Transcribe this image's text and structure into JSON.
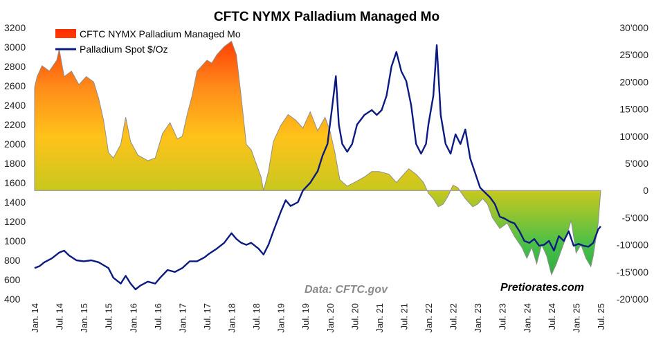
{
  "chart_data": {
    "type": "line",
    "title": "CFTC NYMX Palladium Managed Mo",
    "legend": [
      "CFTC NYMX Palladium Managed Mo",
      "Palladium Spot  $/Oz"
    ],
    "legend_position": "top-left",
    "left_axis": {
      "ticks": [
        "3200",
        "3000",
        "2800",
        "2600",
        "2400",
        "2200",
        "2000",
        "1800",
        "1600",
        "1400",
        "1200",
        "1000",
        "800",
        "600",
        "400"
      ],
      "range": [
        400,
        3200
      ]
    },
    "right_axis": {
      "ticks": [
        "30'000",
        "25'000",
        "20'000",
        "15'000",
        "10'000",
        "5'000",
        "0",
        "-5'000",
        "-10'000",
        "-15'000",
        "-20'000"
      ],
      "range": [
        -20000,
        30000
      ]
    },
    "x_ticks": [
      "Jan. 14",
      "Jul. 14",
      "Jan. 15",
      "Jul. 15",
      "Jan. 16",
      "Jul. 16",
      "Jan. 17",
      "Jul. 17",
      "Jan. 18",
      "Jul. 18",
      "Jan. 19",
      "Jul. 19",
      "Jan. 20",
      "Jul. 20",
      "Jan. 21",
      "Jul. 21",
      "Jan. 22",
      "Jul. 22",
      "Jan. 23",
      "Jul. 23",
      "Jan. 24",
      "Jul. 24",
      "Jan. 25",
      "Jul. 25"
    ],
    "x_range": [
      2014.0,
      2025.5
    ],
    "grid": false,
    "annotations": [
      "Data: CFTC.gov",
      "Pretiorates.com"
    ],
    "series": [
      {
        "name": "CFTC NYMX Palladium Managed Mo",
        "axis": "right",
        "style": "area",
        "points": [
          [
            2014.0,
            19000
          ],
          [
            2014.05,
            21000
          ],
          [
            2014.15,
            23000
          ],
          [
            2014.3,
            22000
          ],
          [
            2014.45,
            24000
          ],
          [
            2014.5,
            26000
          ],
          [
            2014.6,
            21000
          ],
          [
            2014.75,
            22000
          ],
          [
            2014.9,
            19500
          ],
          [
            2015.05,
            21000
          ],
          [
            2015.2,
            20000
          ],
          [
            2015.3,
            17000
          ],
          [
            2015.4,
            13000
          ],
          [
            2015.5,
            7000
          ],
          [
            2015.6,
            6000
          ],
          [
            2015.75,
            8500
          ],
          [
            2015.85,
            13500
          ],
          [
            2015.95,
            9000
          ],
          [
            2016.1,
            6500
          ],
          [
            2016.3,
            5500
          ],
          [
            2016.45,
            6000
          ],
          [
            2016.6,
            10500
          ],
          [
            2016.75,
            12500
          ],
          [
            2016.9,
            9500
          ],
          [
            2017.0,
            10000
          ],
          [
            2017.1,
            14000
          ],
          [
            2017.2,
            17500
          ],
          [
            2017.3,
            22000
          ],
          [
            2017.5,
            24000
          ],
          [
            2017.6,
            23500
          ],
          [
            2017.7,
            25000
          ],
          [
            2017.85,
            26500
          ],
          [
            2018.0,
            27500
          ],
          [
            2018.1,
            25000
          ],
          [
            2018.2,
            17000
          ],
          [
            2018.3,
            8500
          ],
          [
            2018.4,
            7500
          ],
          [
            2018.5,
            5000
          ],
          [
            2018.6,
            2500
          ],
          [
            2018.65,
            0
          ],
          [
            2018.75,
            3500
          ],
          [
            2018.85,
            9000
          ],
          [
            2019.0,
            12000
          ],
          [
            2019.15,
            14000
          ],
          [
            2019.3,
            13000
          ],
          [
            2019.45,
            11500
          ],
          [
            2019.6,
            14500
          ],
          [
            2019.75,
            11000
          ],
          [
            2019.9,
            13500
          ],
          [
            2020.0,
            11000
          ],
          [
            2020.1,
            7000
          ],
          [
            2020.2,
            2000
          ],
          [
            2020.35,
            800
          ],
          [
            2020.5,
            1500
          ],
          [
            2020.7,
            2500
          ],
          [
            2020.85,
            3500
          ],
          [
            2021.0,
            3500
          ],
          [
            2021.2,
            3000
          ],
          [
            2021.35,
            1500
          ],
          [
            2021.5,
            3000
          ],
          [
            2021.6,
            4000
          ],
          [
            2021.75,
            3000
          ],
          [
            2021.9,
            1500
          ],
          [
            2022.0,
            -500
          ],
          [
            2022.1,
            -1500
          ],
          [
            2022.2,
            -3000
          ],
          [
            2022.3,
            -2500
          ],
          [
            2022.4,
            -1000
          ],
          [
            2022.5,
            1000
          ],
          [
            2022.6,
            500
          ],
          [
            2022.75,
            -1500
          ],
          [
            2022.9,
            -3000
          ],
          [
            2023.0,
            -2500
          ],
          [
            2023.1,
            -1500
          ],
          [
            2023.2,
            -2500
          ],
          [
            2023.3,
            -5000
          ],
          [
            2023.45,
            -7000
          ],
          [
            2023.6,
            -6000
          ],
          [
            2023.75,
            -8500
          ],
          [
            2023.9,
            -10500
          ],
          [
            2024.0,
            -12500
          ],
          [
            2024.1,
            -10500
          ],
          [
            2024.2,
            -13500
          ],
          [
            2024.3,
            -10000
          ],
          [
            2024.4,
            -12000
          ],
          [
            2024.5,
            -15500
          ],
          [
            2024.6,
            -13500
          ],
          [
            2024.7,
            -11000
          ],
          [
            2024.8,
            -8500
          ],
          [
            2024.9,
            -5500
          ],
          [
            2025.0,
            -11500
          ],
          [
            2025.1,
            -10000
          ],
          [
            2025.2,
            -12500
          ],
          [
            2025.3,
            -14000
          ],
          [
            2025.35,
            -12000
          ],
          [
            2025.45,
            -6000
          ],
          [
            2025.5,
            0
          ]
        ]
      },
      {
        "name": "Palladium Spot  $/Oz",
        "axis": "left",
        "style": "line",
        "color": "#0b1a80",
        "points": [
          [
            2014.0,
            720
          ],
          [
            2014.1,
            740
          ],
          [
            2014.2,
            780
          ],
          [
            2014.35,
            820
          ],
          [
            2014.5,
            880
          ],
          [
            2014.6,
            900
          ],
          [
            2014.7,
            850
          ],
          [
            2014.85,
            800
          ],
          [
            2015.0,
            790
          ],
          [
            2015.15,
            800
          ],
          [
            2015.3,
            780
          ],
          [
            2015.4,
            750
          ],
          [
            2015.5,
            720
          ],
          [
            2015.6,
            620
          ],
          [
            2015.75,
            560
          ],
          [
            2015.85,
            640
          ],
          [
            2015.95,
            560
          ],
          [
            2016.05,
            500
          ],
          [
            2016.15,
            540
          ],
          [
            2016.3,
            580
          ],
          [
            2016.45,
            560
          ],
          [
            2016.55,
            620
          ],
          [
            2016.7,
            700
          ],
          [
            2016.85,
            680
          ],
          [
            2017.0,
            720
          ],
          [
            2017.15,
            790
          ],
          [
            2017.3,
            790
          ],
          [
            2017.45,
            830
          ],
          [
            2017.55,
            870
          ],
          [
            2017.7,
            920
          ],
          [
            2017.85,
            980
          ],
          [
            2018.0,
            1080
          ],
          [
            2018.1,
            1020
          ],
          [
            2018.2,
            980
          ],
          [
            2018.3,
            960
          ],
          [
            2018.4,
            980
          ],
          [
            2018.55,
            920
          ],
          [
            2018.65,
            860
          ],
          [
            2018.75,
            960
          ],
          [
            2018.85,
            1100
          ],
          [
            2019.0,
            1300
          ],
          [
            2019.1,
            1420
          ],
          [
            2019.2,
            1360
          ],
          [
            2019.35,
            1400
          ],
          [
            2019.45,
            1520
          ],
          [
            2019.6,
            1600
          ],
          [
            2019.75,
            1720
          ],
          [
            2019.85,
            1880
          ],
          [
            2019.95,
            2000
          ],
          [
            2020.05,
            2400
          ],
          [
            2020.12,
            2700
          ],
          [
            2020.18,
            2200
          ],
          [
            2020.25,
            2000
          ],
          [
            2020.35,
            1920
          ],
          [
            2020.45,
            2000
          ],
          [
            2020.55,
            2200
          ],
          [
            2020.7,
            2300
          ],
          [
            2020.85,
            2350
          ],
          [
            2020.95,
            2300
          ],
          [
            2021.05,
            2350
          ],
          [
            2021.15,
            2500
          ],
          [
            2021.25,
            2800
          ],
          [
            2021.35,
            2950
          ],
          [
            2021.45,
            2750
          ],
          [
            2021.55,
            2650
          ],
          [
            2021.65,
            2400
          ],
          [
            2021.75,
            2000
          ],
          [
            2021.85,
            1900
          ],
          [
            2021.95,
            2000
          ],
          [
            2022.0,
            2200
          ],
          [
            2022.1,
            2500
          ],
          [
            2022.17,
            3020
          ],
          [
            2022.25,
            2300
          ],
          [
            2022.35,
            2000
          ],
          [
            2022.45,
            1900
          ],
          [
            2022.55,
            2100
          ],
          [
            2022.65,
            2000
          ],
          [
            2022.75,
            2150
          ],
          [
            2022.85,
            1850
          ],
          [
            2022.95,
            1700
          ],
          [
            2023.05,
            1550
          ],
          [
            2023.15,
            1500
          ],
          [
            2023.25,
            1450
          ],
          [
            2023.35,
            1380
          ],
          [
            2023.45,
            1250
          ],
          [
            2023.55,
            1230
          ],
          [
            2023.65,
            1200
          ],
          [
            2023.75,
            1180
          ],
          [
            2023.85,
            1100
          ],
          [
            2023.95,
            1000
          ],
          [
            2024.05,
            980
          ],
          [
            2024.15,
            1020
          ],
          [
            2024.25,
            950
          ],
          [
            2024.35,
            960
          ],
          [
            2024.45,
            1000
          ],
          [
            2024.55,
            900
          ],
          [
            2024.65,
            1050
          ],
          [
            2024.75,
            1000
          ],
          [
            2024.85,
            1100
          ],
          [
            2024.95,
            950
          ],
          [
            2025.05,
            970
          ],
          [
            2025.15,
            950
          ],
          [
            2025.25,
            940
          ],
          [
            2025.35,
            980
          ],
          [
            2025.45,
            1120
          ],
          [
            2025.5,
            1150
          ]
        ]
      }
    ]
  }
}
